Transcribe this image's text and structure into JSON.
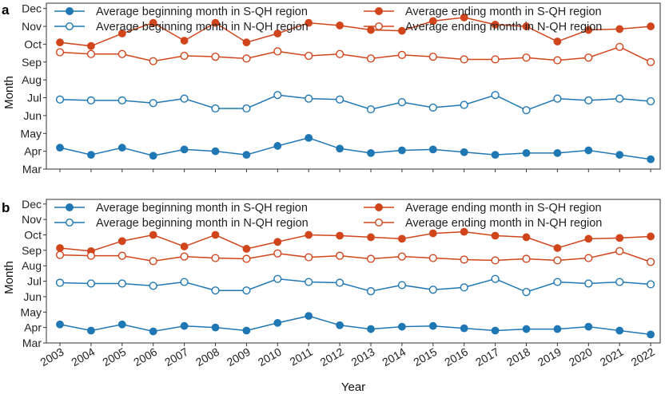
{
  "chart_data": [
    {
      "type": "line",
      "panel_label": "a",
      "xlabel": "",
      "ylabel": "Month",
      "categories": [
        "2003",
        "2004",
        "2005",
        "2006",
        "2007",
        "2008",
        "2009",
        "2010",
        "2011",
        "2012",
        "2013",
        "2014",
        "2015",
        "2016",
        "2017",
        "2018",
        "2019",
        "2020",
        "2021",
        "2022"
      ],
      "y_tick_labels": [
        "Mar",
        "Apr",
        "May",
        "Jun",
        "Jul",
        "Aug",
        "Sep",
        "Oct",
        "Nov",
        "Dec"
      ],
      "ylim": [
        3,
        12.3
      ],
      "series": [
        {
          "name": "Average beginning month in S-QH region",
          "color": "#1f77b4",
          "filled": true,
          "values": [
            4.2,
            3.8,
            4.2,
            3.75,
            4.1,
            4.0,
            3.8,
            4.3,
            4.75,
            4.15,
            3.9,
            4.05,
            4.1,
            3.95,
            3.8,
            3.9,
            3.9,
            4.05,
            3.8,
            3.55
          ]
        },
        {
          "name": "Average ending month in S-QH region",
          "color": "#d0451b",
          "filled": true,
          "values": [
            10.1,
            9.9,
            10.6,
            11.2,
            10.2,
            11.2,
            10.1,
            10.6,
            11.2,
            11.05,
            10.8,
            10.75,
            11.3,
            11.5,
            11.1,
            11.0,
            10.15,
            10.8,
            10.85,
            11.0
          ]
        },
        {
          "name": "Average beginning month in N-QH region",
          "color": "#1f77b4",
          "filled": false,
          "values": [
            6.9,
            6.85,
            6.85,
            6.7,
            6.95,
            6.4,
            6.4,
            7.15,
            6.95,
            6.9,
            6.35,
            6.75,
            6.45,
            6.6,
            7.15,
            6.3,
            6.95,
            6.85,
            6.95,
            6.8
          ]
        },
        {
          "name": "Average ending month in N-QH region",
          "color": "#d0451b",
          "filled": false,
          "values": [
            9.55,
            9.45,
            9.45,
            9.05,
            9.35,
            9.3,
            9.2,
            9.6,
            9.35,
            9.45,
            9.2,
            9.4,
            9.3,
            9.15,
            9.15,
            9.25,
            9.1,
            9.25,
            9.85,
            9.0
          ]
        }
      ],
      "legend": {
        "placement": "top",
        "columns": 2
      }
    },
    {
      "type": "line",
      "panel_label": "b",
      "xlabel": "Year",
      "ylabel": "Month",
      "categories": [
        "2003",
        "2004",
        "2005",
        "2006",
        "2007",
        "2008",
        "2009",
        "2010",
        "2011",
        "2012",
        "2013",
        "2014",
        "2015",
        "2016",
        "2017",
        "2018",
        "2019",
        "2020",
        "2021",
        "2022"
      ],
      "y_tick_labels": [
        "Mar",
        "Apr",
        "May",
        "Jun",
        "Jul",
        "Aug",
        "Sep",
        "Oct",
        "Nov",
        "Dec"
      ],
      "ylim": [
        3,
        12.3
      ],
      "series": [
        {
          "name": "Average beginning month in S-QH region",
          "color": "#1f77b4",
          "filled": true,
          "values": [
            4.2,
            3.8,
            4.2,
            3.75,
            4.1,
            4.0,
            3.8,
            4.3,
            4.75,
            4.15,
            3.9,
            4.05,
            4.1,
            3.95,
            3.8,
            3.9,
            3.9,
            4.05,
            3.8,
            3.55
          ]
        },
        {
          "name": "Average ending month in S-QH region",
          "color": "#d0451b",
          "filled": true,
          "values": [
            9.15,
            8.95,
            9.6,
            10.0,
            9.25,
            10.0,
            9.1,
            9.55,
            10.0,
            9.95,
            9.85,
            9.75,
            10.1,
            10.2,
            9.95,
            9.85,
            9.15,
            9.75,
            9.8,
            9.9
          ]
        },
        {
          "name": "Average beginning month in N-QH region",
          "color": "#1f77b4",
          "filled": false,
          "values": [
            6.9,
            6.85,
            6.85,
            6.7,
            6.95,
            6.4,
            6.4,
            7.15,
            6.95,
            6.9,
            6.35,
            6.75,
            6.45,
            6.6,
            7.15,
            6.3,
            6.95,
            6.85,
            6.95,
            6.8
          ]
        },
        {
          "name": "Average ending month in N-QH region",
          "color": "#d0451b",
          "filled": false,
          "values": [
            8.7,
            8.65,
            8.65,
            8.3,
            8.6,
            8.5,
            8.45,
            8.8,
            8.55,
            8.65,
            8.45,
            8.6,
            8.5,
            8.4,
            8.35,
            8.45,
            8.35,
            8.5,
            8.95,
            8.25
          ]
        }
      ],
      "legend": {
        "placement": "top",
        "columns": 2
      }
    }
  ]
}
